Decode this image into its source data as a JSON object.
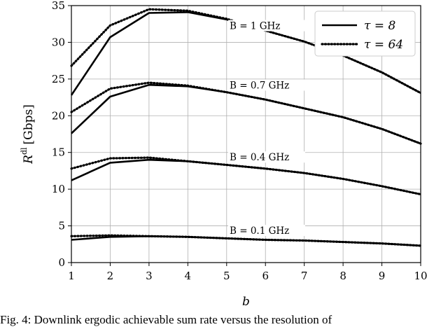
{
  "chart_data": {
    "type": "line",
    "xlabel": "b",
    "ylabel_main": "R",
    "ylabel_sup": "dl",
    "ylabel_unit": "[Gbps]",
    "x": [
      1,
      2,
      3,
      4,
      5,
      6,
      7,
      8,
      9,
      10
    ],
    "xlim": [
      1,
      10
    ],
    "ylim": [
      0,
      35
    ],
    "x_ticks": [
      "1",
      "2",
      "3",
      "4",
      "5",
      "6",
      "7",
      "8",
      "9",
      "10"
    ],
    "y_ticks": [
      "0",
      "5",
      "10",
      "15",
      "20",
      "25",
      "30",
      "35"
    ],
    "grid": true,
    "legend_position": "top-right",
    "legend": [
      {
        "label": "τ = 8",
        "style": "solid"
      },
      {
        "label": "τ = 64",
        "style": "dotted"
      }
    ],
    "groups": [
      {
        "label": "B = 1 GHz",
        "tau8": [
          22.8,
          30.7,
          34.0,
          34.1,
          33.1,
          31.6,
          30.1,
          28.2,
          25.9,
          23.1
        ],
        "tau64": [
          26.8,
          32.3,
          34.5,
          34.3,
          33.2,
          31.6,
          30.1,
          28.2,
          25.9,
          23.1
        ]
      },
      {
        "label": "B = 0.7 GHz",
        "tau8": [
          17.6,
          22.6,
          24.2,
          24.0,
          23.2,
          22.2,
          21.0,
          19.8,
          18.2,
          16.2
        ],
        "tau64": [
          20.5,
          23.7,
          24.5,
          24.1,
          23.2,
          22.2,
          21.0,
          19.8,
          18.2,
          16.2
        ]
      },
      {
        "label": "B = 0.4 GHz",
        "tau8": [
          11.2,
          13.6,
          14.0,
          13.8,
          13.3,
          12.8,
          12.2,
          11.4,
          10.4,
          9.3
        ],
        "tau64": [
          12.8,
          14.2,
          14.3,
          13.8,
          13.3,
          12.8,
          12.2,
          11.4,
          10.4,
          9.3
        ]
      },
      {
        "label": "B = 0.1 GHz",
        "tau8": [
          3.1,
          3.5,
          3.6,
          3.5,
          3.3,
          3.1,
          3.0,
          2.8,
          2.6,
          2.3
        ],
        "tau64": [
          3.6,
          3.7,
          3.6,
          3.5,
          3.3,
          3.1,
          3.0,
          2.8,
          2.6,
          2.3
        ]
      }
    ]
  },
  "caption": "Fig. 4: Downlink ergodic achievable sum rate versus the resolution of"
}
